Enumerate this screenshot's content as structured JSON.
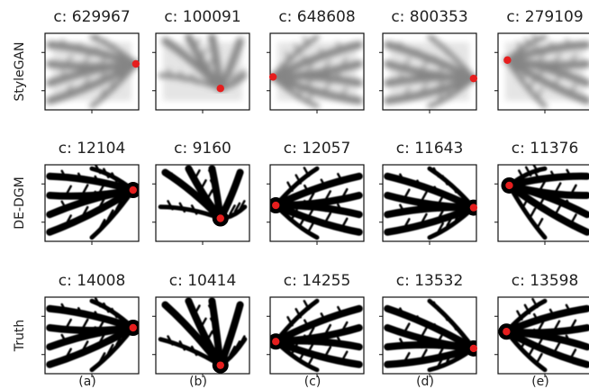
{
  "rows": [
    {
      "label": "StyleGAN",
      "cells": [
        "c: 629967",
        "c: 100091",
        "c: 648608",
        "c: 800353",
        "c: 279109"
      ]
    },
    {
      "label": "DE-DGM",
      "cells": [
        "c: 12104",
        "c: 9160",
        "c: 12057",
        "c: 11643",
        "c: 11376"
      ]
    },
    {
      "label": "Truth",
      "cells": [
        "c: 14008",
        "c: 10414",
        "c: 14255",
        "c: 13532",
        "c: 13598"
      ]
    }
  ],
  "columns": [
    "(a)",
    "(b)",
    "(c)",
    "(d)",
    "(e)"
  ]
}
